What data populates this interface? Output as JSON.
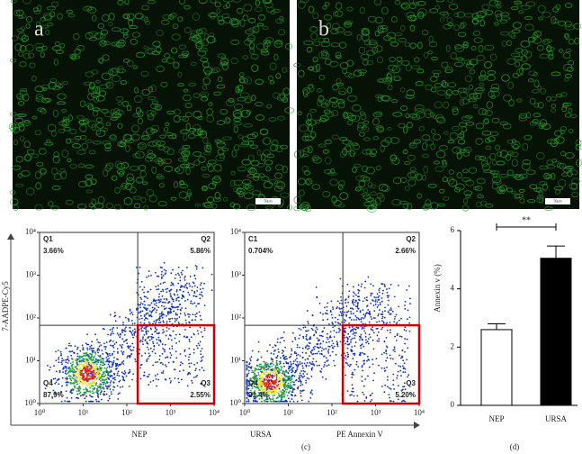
{
  "images": [
    {
      "label": "a",
      "scale_bar": "50μm"
    },
    {
      "label": "b",
      "scale_bar": "50μm"
    }
  ],
  "flow": {
    "caption": "(c)",
    "y_label": "7-AADPE-Cy5",
    "x_label": "PE Annexin V",
    "ticks": [
      {
        "value": 0,
        "label": "10⁰"
      },
      {
        "value": 1,
        "label": "10¹"
      },
      {
        "value": 2,
        "label": "10²"
      },
      {
        "value": 3,
        "label": "10³"
      },
      {
        "value": 4,
        "label": "10⁴"
      }
    ],
    "plots": [
      {
        "name": "NEP",
        "quadrants": {
          "q1": {
            "label": "Q1",
            "percent": "3.66%"
          },
          "q2": {
            "label": "Q2",
            "percent": "5.86%"
          },
          "q3": {
            "label": "Q3",
            "percent": "2.55%"
          },
          "q4": {
            "label": "Q4",
            "percent": "87.9%"
          }
        }
      },
      {
        "name": "URSA",
        "quadrants": {
          "q1": {
            "label": "C1",
            "percent": "0.704%"
          },
          "q2": {
            "label": "Q2",
            "percent": "2.66%"
          },
          "q3": {
            "label": "Q3",
            "percent": "5.20%"
          },
          "q4": {
            "label": "Q4",
            "percent": "91.4%"
          }
        }
      }
    ]
  },
  "chart_data": {
    "type": "bar",
    "caption": "(d)",
    "y_label": "Annexin v (%)",
    "categories": [
      "NEP",
      "URSA"
    ],
    "values": [
      2.6,
      5.05
    ],
    "errors": [
      0.2,
      0.42
    ],
    "colors": [
      "#ffffff",
      "#000000"
    ],
    "ylim": [
      0,
      6
    ],
    "yticks": [
      0,
      2,
      4,
      6
    ],
    "significance": "**"
  }
}
